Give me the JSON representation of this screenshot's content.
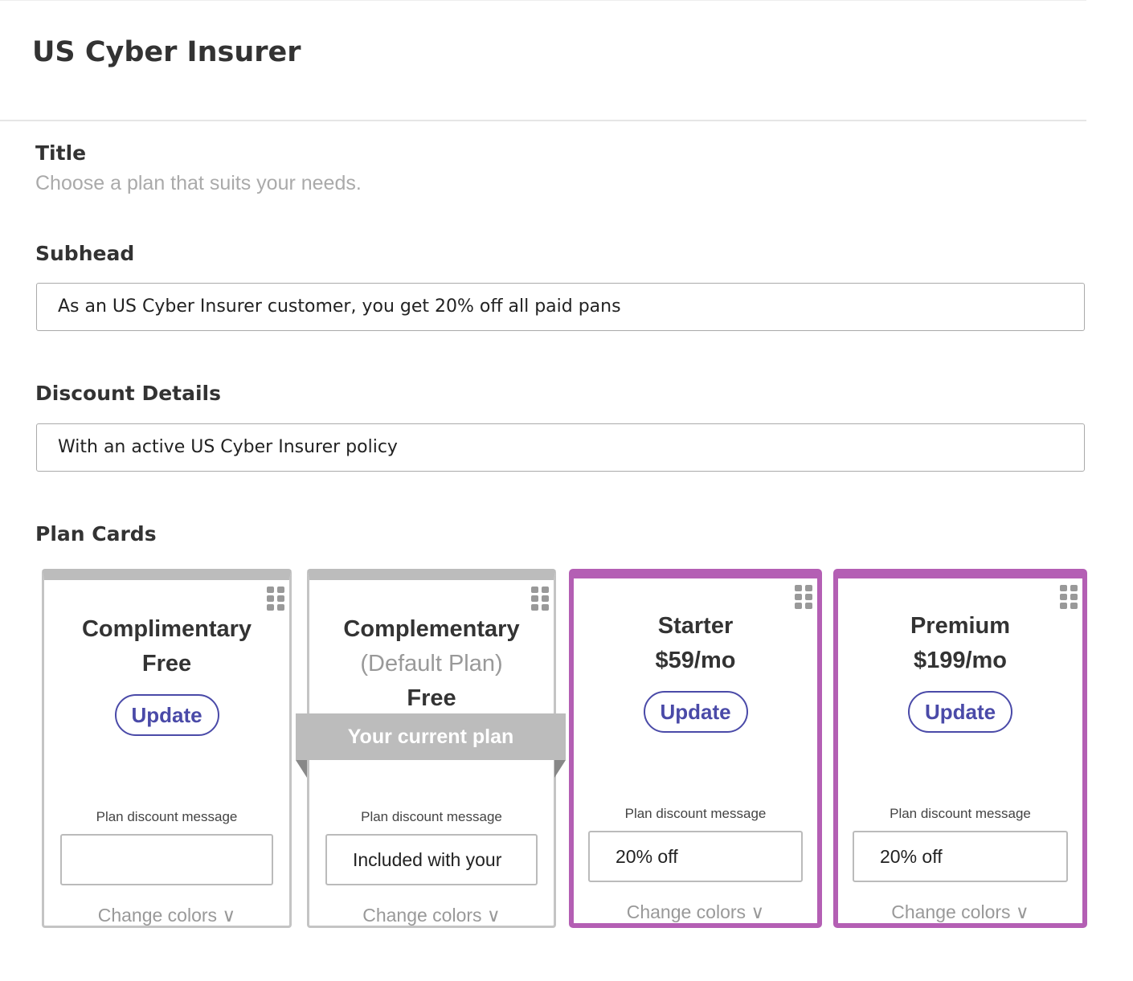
{
  "header": {
    "title": "US Cyber Insurer"
  },
  "form": {
    "title_label": "Title",
    "title_placeholder": "Choose a plan that suits your needs.",
    "subhead_label": "Subhead",
    "subhead_value": "As an US Cyber Insurer customer, you get 20% off all paid pans",
    "discount_label": "Discount Details",
    "discount_value": "With an active US Cyber Insurer policy",
    "plan_cards_label": "Plan Cards"
  },
  "colors": {
    "selected_border": "#b45fb4",
    "button": "#4a4aa8",
    "ribbon": "#bcbcbc"
  },
  "cards": [
    {
      "name": "Complimentary",
      "price": "Free",
      "button": "Update",
      "discount_label": "Plan discount message",
      "discount_value": "",
      "change_colors": "Change colors",
      "selected": false
    },
    {
      "name": "Complementary",
      "note": "(Default Plan)",
      "price": "Free",
      "ribbon": "Your current plan",
      "discount_label": "Plan discount message",
      "discount_value": "Included with your",
      "change_colors": "Change colors",
      "selected": false
    },
    {
      "name": "Starter",
      "price": "$59/mo",
      "button": "Update",
      "discount_label": "Plan discount message",
      "discount_value": "20% off",
      "change_colors": "Change colors",
      "selected": true
    },
    {
      "name": "Premium",
      "price": "$199/mo",
      "button": "Update",
      "discount_label": "Plan discount message",
      "discount_value": "20% off",
      "change_colors": "Change colors",
      "selected": true
    }
  ]
}
